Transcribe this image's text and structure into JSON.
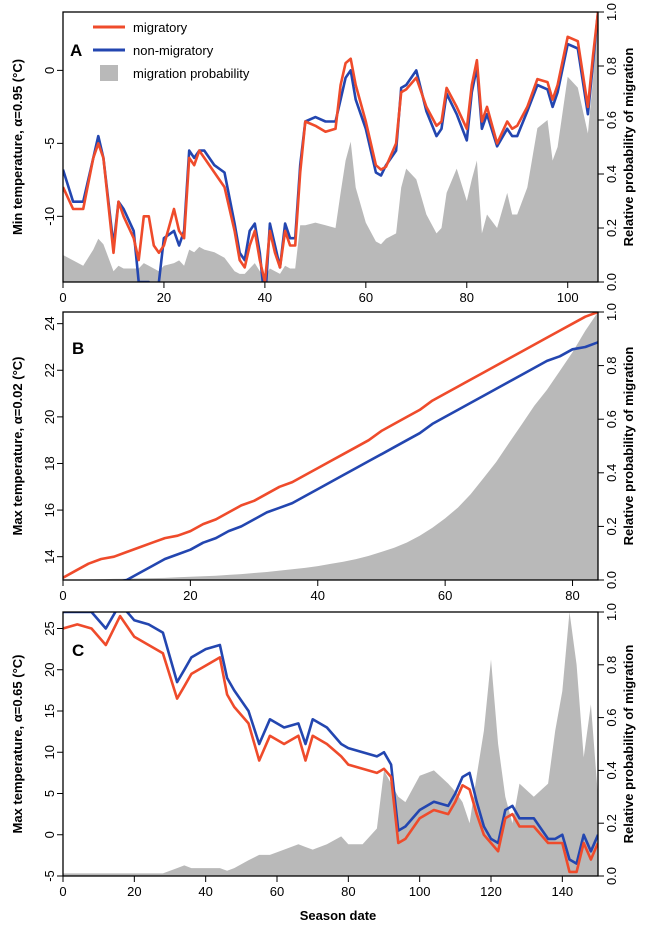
{
  "colors": {
    "migratory": "#ef4b2b",
    "non_migratory": "#2346b0",
    "probability": "#b9b9b9"
  },
  "x_axis_title": "Season date",
  "legend": {
    "migratory": "migratory",
    "non_migratory": "non-migratory",
    "probability": "migration probability"
  },
  "chart_data": [
    {
      "type": "line",
      "panel": "A",
      "ylabel": "Min temperature, α=0.95 (°C)",
      "y2label": "Relative probability of migration",
      "xlim": [
        0,
        106
      ],
      "ylim": [
        -14.5,
        4
      ],
      "y2lim": [
        0,
        1
      ],
      "xticks": [
        0,
        20,
        40,
        60,
        80,
        100
      ],
      "yticks": [
        -10,
        -5,
        0
      ],
      "y2ticks": [
        0.0,
        0.2,
        0.4,
        0.6,
        0.8,
        1.0
      ],
      "x": [
        0,
        2,
        4,
        6,
        7,
        8,
        10,
        11,
        12,
        14,
        15,
        16,
        17,
        18,
        19,
        20,
        22,
        23,
        24,
        25,
        26,
        27,
        28,
        30,
        32,
        34,
        35,
        36,
        37,
        38,
        39,
        40,
        41,
        42,
        43,
        44,
        45,
        46,
        47,
        48,
        50,
        52,
        54,
        55,
        56,
        57,
        58,
        60,
        62,
        63,
        64,
        66,
        67,
        68,
        70,
        72,
        74,
        75,
        76,
        78,
        80,
        81,
        82,
        83,
        84,
        86,
        88,
        89,
        90,
        92,
        94,
        96,
        97,
        98,
        100,
        102,
        104,
        105,
        106
      ],
      "series": [
        {
          "name": "migratory",
          "values": [
            -8,
            -9.5,
            -9.5,
            -6,
            -5,
            -6,
            -12.5,
            -9,
            -10,
            -11.5,
            -13,
            -10,
            -10,
            -12,
            -12.5,
            -12,
            -9.5,
            -11,
            -11.5,
            -6,
            -6.5,
            -5.5,
            -6,
            -7,
            -8,
            -11,
            -13,
            -13.5,
            -12,
            -11,
            -13,
            -14.5,
            -11,
            -12.5,
            -13.5,
            -11,
            -12,
            -12,
            -7,
            -3.5,
            -3.8,
            -4.2,
            -4,
            -1,
            0.5,
            0.8,
            -1,
            -3.5,
            -6.5,
            -6.8,
            -6.6,
            -5,
            -1.5,
            -1.3,
            -0.5,
            -2.5,
            -3.8,
            -3.5,
            -1.2,
            -2.5,
            -4,
            -1,
            0.7,
            -3.5,
            -2.5,
            -5,
            -3.5,
            -4,
            -3.8,
            -2.5,
            -0.6,
            -0.8,
            -2,
            -1,
            2.3,
            2,
            -2.5,
            1,
            4
          ]
        },
        {
          "name": "non-migratory",
          "values": [
            -6.8,
            -9,
            -9,
            -6,
            -4.5,
            -6,
            -12,
            -9,
            -9.5,
            -11,
            -14.5,
            -14.5,
            -14.5,
            -16,
            -14.5,
            -11.5,
            -11,
            -12,
            -11,
            -5.5,
            -6,
            -5.5,
            -5.5,
            -6.5,
            -7,
            -10.5,
            -12.5,
            -13,
            -11,
            -10.5,
            -12.5,
            -16,
            -10.5,
            -12,
            -13.5,
            -10.5,
            -11.5,
            -11.5,
            -6.5,
            -3.5,
            -3.2,
            -3.5,
            -3.5,
            -2,
            -0.5,
            0,
            -2,
            -4,
            -7,
            -7.2,
            -6.5,
            -5.5,
            -1.2,
            -1,
            0,
            -2.8,
            -4.5,
            -4,
            -1.6,
            -3,
            -4.8,
            -1.5,
            0.2,
            -4,
            -3,
            -5.2,
            -4,
            -4.5,
            -4.5,
            -2.8,
            -1,
            -1.3,
            -2.5,
            -1.5,
            1.8,
            1.5,
            -3,
            0.5,
            4
          ]
        },
        {
          "name": "migration probability",
          "axis": "right",
          "values": [
            0.1,
            0.08,
            0.06,
            0.12,
            0.16,
            0.14,
            0.04,
            0.06,
            0.05,
            0.05,
            0.05,
            0.07,
            0.06,
            0.05,
            0.04,
            0.06,
            0.07,
            0.08,
            0.06,
            0.12,
            0.11,
            0.13,
            0.12,
            0.11,
            0.09,
            0.04,
            0.03,
            0.03,
            0.05,
            0.07,
            0.04,
            0.02,
            0.05,
            0.04,
            0.03,
            0.06,
            0.05,
            0.05,
            0.21,
            0.21,
            0.22,
            0.21,
            0.2,
            0.33,
            0.45,
            0.52,
            0.35,
            0.22,
            0.15,
            0.14,
            0.16,
            0.18,
            0.35,
            0.42,
            0.38,
            0.25,
            0.18,
            0.2,
            0.33,
            0.42,
            0.3,
            0.38,
            0.45,
            0.18,
            0.25,
            0.2,
            0.33,
            0.25,
            0.25,
            0.35,
            0.57,
            0.6,
            0.45,
            0.5,
            0.76,
            0.72,
            0.55,
            0.75,
            1.0
          ]
        }
      ]
    },
    {
      "type": "line",
      "panel": "B",
      "ylabel": "Max temperature, α=0.02 (°C)",
      "y2label": "Relative probability of migration",
      "xlim": [
        0,
        84
      ],
      "ylim": [
        13,
        24.5
      ],
      "y2lim": [
        0,
        1
      ],
      "xticks": [
        0,
        20,
        40,
        60,
        80
      ],
      "yticks": [
        14,
        16,
        18,
        20,
        22,
        24
      ],
      "y2ticks": [
        0.0,
        0.2,
        0.4,
        0.6,
        0.8,
        1.0
      ],
      "x": [
        0,
        2,
        4,
        6,
        8,
        10,
        12,
        14,
        16,
        18,
        20,
        22,
        24,
        26,
        28,
        30,
        32,
        34,
        36,
        38,
        40,
        42,
        44,
        46,
        48,
        50,
        52,
        54,
        56,
        58,
        60,
        62,
        64,
        66,
        68,
        70,
        72,
        74,
        76,
        78,
        80,
        82,
        84
      ],
      "series": [
        {
          "name": "migratory",
          "values": [
            13.1,
            13.4,
            13.7,
            13.9,
            14.0,
            14.2,
            14.4,
            14.6,
            14.8,
            14.9,
            15.1,
            15.4,
            15.6,
            15.9,
            16.2,
            16.4,
            16.7,
            17.0,
            17.2,
            17.5,
            17.8,
            18.1,
            18.4,
            18.7,
            19.0,
            19.4,
            19.7,
            20.0,
            20.3,
            20.7,
            21.0,
            21.3,
            21.6,
            21.9,
            22.2,
            22.5,
            22.8,
            23.1,
            23.4,
            23.7,
            24.0,
            24.3,
            24.5
          ]
        },
        {
          "name": "non-migratory",
          "values": [
            12.4,
            12.6,
            12.8,
            12.9,
            12.9,
            13.0,
            13.3,
            13.6,
            13.9,
            14.1,
            14.3,
            14.6,
            14.8,
            15.1,
            15.3,
            15.6,
            15.9,
            16.1,
            16.3,
            16.6,
            16.9,
            17.2,
            17.5,
            17.8,
            18.1,
            18.4,
            18.7,
            19.0,
            19.3,
            19.7,
            20.0,
            20.3,
            20.6,
            20.9,
            21.2,
            21.5,
            21.8,
            22.1,
            22.4,
            22.6,
            22.9,
            23.0,
            23.2
          ]
        },
        {
          "name": "migration probability",
          "axis": "right",
          "values": [
            0,
            0.001,
            0.002,
            0.003,
            0.004,
            0.005,
            0.006,
            0.007,
            0.008,
            0.01,
            0.012,
            0.014,
            0.016,
            0.019,
            0.022,
            0.026,
            0.03,
            0.035,
            0.04,
            0.045,
            0.052,
            0.06,
            0.068,
            0.078,
            0.09,
            0.105,
            0.12,
            0.14,
            0.165,
            0.195,
            0.23,
            0.27,
            0.32,
            0.38,
            0.44,
            0.51,
            0.58,
            0.65,
            0.71,
            0.78,
            0.85,
            0.93,
            1.0
          ]
        }
      ]
    },
    {
      "type": "line",
      "panel": "C",
      "ylabel": "Max temperature, α=0.65 (°C)",
      "y2label": "Relative probability of migration",
      "xlim": [
        0,
        150
      ],
      "ylim": [
        -5,
        27
      ],
      "y2lim": [
        0,
        1
      ],
      "xticks": [
        0,
        20,
        40,
        60,
        80,
        100,
        120,
        140
      ],
      "yticks": [
        -5,
        0,
        5,
        10,
        15,
        20,
        25
      ],
      "y2ticks": [
        0.0,
        0.2,
        0.4,
        0.6,
        0.8,
        1.0
      ],
      "x": [
        0,
        4,
        8,
        12,
        16,
        20,
        24,
        28,
        32,
        34,
        36,
        40,
        44,
        46,
        48,
        52,
        55,
        58,
        62,
        66,
        68,
        70,
        74,
        78,
        80,
        84,
        88,
        90,
        92,
        94,
        96,
        100,
        104,
        108,
        110,
        112,
        114,
        116,
        118,
        120,
        122,
        124,
        126,
        128,
        132,
        136,
        138,
        140,
        142,
        144,
        146,
        148,
        150
      ],
      "series": [
        {
          "name": "migratory",
          "values": [
            25,
            25.5,
            25,
            23,
            26.5,
            24,
            23,
            22,
            16.5,
            18,
            19.5,
            20.5,
            21.5,
            17,
            15.5,
            13.5,
            9,
            12,
            11,
            12,
            9,
            12,
            11,
            9.5,
            8.5,
            8,
            7.5,
            8,
            7,
            -1,
            -0.5,
            2,
            3,
            2.5,
            4,
            6,
            5.5,
            2.5,
            0,
            -1,
            -2,
            2,
            2.5,
            1,
            1,
            -1,
            -1,
            -1,
            -4.5,
            -4.5,
            -1,
            -3,
            -1
          ]
        },
        {
          "name": "non-migratory",
          "values": [
            27,
            27,
            27,
            25,
            28,
            26,
            25.5,
            24.5,
            18.5,
            20,
            21.5,
            22.5,
            23,
            19,
            17.5,
            15,
            11,
            14,
            13,
            13.5,
            11,
            14,
            13,
            11,
            10.5,
            10,
            9.5,
            10,
            8.5,
            0.5,
            1,
            3,
            4,
            3.5,
            5,
            7,
            7.5,
            4,
            1,
            -0.5,
            -1,
            3,
            3.5,
            2,
            2,
            -0.5,
            -0.5,
            0,
            -3,
            -3.5,
            0,
            -2,
            0
          ]
        },
        {
          "name": "migration probability",
          "axis": "right",
          "values": [
            0.01,
            0.01,
            0.01,
            0.01,
            0.01,
            0.01,
            0.01,
            0.01,
            0.03,
            0.04,
            0.03,
            0.03,
            0.03,
            0.02,
            0.03,
            0.06,
            0.08,
            0.08,
            0.1,
            0.12,
            0.11,
            0.1,
            0.12,
            0.15,
            0.12,
            0.12,
            0.18,
            0.4,
            0.35,
            0.3,
            0.28,
            0.38,
            0.4,
            0.35,
            0.32,
            0.28,
            0.2,
            0.38,
            0.55,
            0.82,
            0.5,
            0.3,
            0.2,
            0.35,
            0.3,
            0.35,
            0.55,
            0.7,
            1.0,
            0.8,
            0.45,
            0.65,
            0.3
          ]
        }
      ]
    }
  ]
}
